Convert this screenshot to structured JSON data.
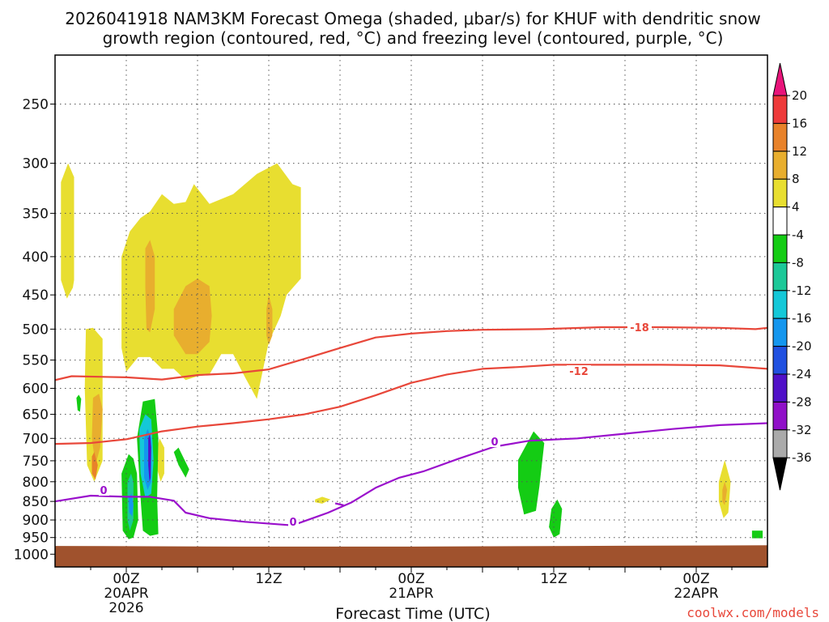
{
  "chart_data": {
    "type": "heatmap",
    "title_line1": "2026041918 NAM3KM Forecast Omega (shaded, μbar/s) for KHUF with dendritic snow",
    "title_line2": "growth region (contoured, red, °C) and freezing level (contoured, purple, °C)",
    "xlabel": "Forecast Time (UTC)",
    "credit": "coolwx.com/models",
    "x_range_hours": [
      -6,
      54
    ],
    "y_range_hpa": [
      215,
      1040
    ],
    "y_scale": "log-pressure",
    "grid": true,
    "y_ticks": [
      "250",
      "300",
      "350",
      "400",
      "450",
      "500",
      "550",
      "600",
      "650",
      "700",
      "750",
      "800",
      "850",
      "900",
      "950",
      "1000"
    ],
    "x_ticks": [
      {
        "h": 0,
        "lines": [
          "00Z",
          "20APR",
          "2026"
        ]
      },
      {
        "h": 12,
        "lines": [
          "12Z"
        ]
      },
      {
        "h": 24,
        "lines": [
          "00Z",
          "21APR"
        ]
      },
      {
        "h": 36,
        "lines": [
          "12Z"
        ]
      },
      {
        "h": 48,
        "lines": [
          "00Z",
          "22APR"
        ]
      }
    ],
    "colorbar": {
      "levels": [
        "20",
        "16",
        "12",
        "8",
        "4",
        "-4",
        "-8",
        "-12",
        "-16",
        "-20",
        "-24",
        "-28",
        "-32",
        "-36"
      ],
      "colors": [
        "#e8147a",
        "#ee3a3a",
        "#e8822a",
        "#e8ae2e",
        "#e8de30",
        "#ffffff",
        "#14cc14",
        "#1cc898",
        "#14c8d8",
        "#1496ee",
        "#2050e0",
        "#5010c8",
        "#9010c8",
        "#aaaaaa",
        "#000000"
      ]
    },
    "contour_labels": {
      "dgz_top": "-18",
      "dgz_bottom": "-12",
      "freezing": "0"
    },
    "contours": [
      {
        "id": "dgz-top",
        "color": "#e8473a",
        "points": [
          [
            -6,
            585
          ],
          [
            -4.6,
            578
          ],
          [
            0,
            580
          ],
          [
            3,
            584
          ],
          [
            6,
            576
          ],
          [
            9,
            573
          ],
          [
            12,
            566
          ],
          [
            15,
            548
          ],
          [
            18,
            530
          ],
          [
            21,
            513
          ],
          [
            24,
            507
          ],
          [
            27,
            503
          ],
          [
            30,
            501
          ],
          [
            35,
            500
          ],
          [
            40,
            497
          ],
          [
            45,
            497
          ],
          [
            50,
            498
          ],
          [
            53,
            500
          ],
          [
            54,
            498
          ]
        ]
      },
      {
        "id": "dgz-bottom",
        "color": "#e8473a",
        "points": [
          [
            -6,
            712
          ],
          [
            -3,
            710
          ],
          [
            0,
            702
          ],
          [
            3,
            685
          ],
          [
            6,
            675
          ],
          [
            9,
            668
          ],
          [
            12,
            660
          ],
          [
            15,
            650
          ],
          [
            18,
            635
          ],
          [
            21,
            613
          ],
          [
            24,
            590
          ],
          [
            27,
            575
          ],
          [
            30,
            565
          ],
          [
            33,
            562
          ],
          [
            36,
            558
          ],
          [
            40,
            558
          ],
          [
            45,
            558
          ],
          [
            50,
            559
          ],
          [
            54,
            565
          ]
        ]
      },
      {
        "id": "freezing",
        "color": "#9a10cc",
        "points": [
          [
            -6,
            850
          ],
          [
            -3,
            835
          ],
          [
            0,
            838
          ],
          [
            2,
            838
          ],
          [
            3,
            843
          ],
          [
            4,
            848
          ],
          [
            5,
            880
          ],
          [
            7,
            895
          ],
          [
            10,
            905
          ],
          [
            14,
            915
          ],
          [
            17,
            880
          ],
          [
            19,
            852
          ],
          [
            21,
            815
          ],
          [
            23,
            790
          ],
          [
            25,
            775
          ],
          [
            28,
            745
          ],
          [
            31,
            718
          ],
          [
            34,
            705
          ],
          [
            38,
            700
          ],
          [
            42,
            690
          ],
          [
            46,
            680
          ],
          [
            50,
            672
          ],
          [
            54,
            668
          ]
        ]
      }
    ],
    "regions": [
      {
        "level": 4,
        "points": [
          [
            -5.5,
            318
          ],
          [
            -4.9,
            300
          ],
          [
            -4.4,
            313
          ],
          [
            -4.4,
            430
          ],
          [
            -4.5,
            440
          ],
          [
            -5,
            455
          ],
          [
            -5.5,
            430
          ]
        ]
      },
      {
        "level": 4,
        "points": [
          [
            -3.4,
            500
          ],
          [
            -2.8,
            498
          ],
          [
            -2,
            515
          ],
          [
            -2,
            750
          ],
          [
            -2.7,
            800
          ],
          [
            -3.3,
            760
          ],
          [
            -3.5,
            600
          ]
        ]
      },
      {
        "level": 4,
        "points": [
          [
            -0.4,
            400
          ],
          [
            0.3,
            370
          ],
          [
            1.2,
            355
          ],
          [
            2,
            348
          ],
          [
            3,
            330
          ],
          [
            4,
            340
          ],
          [
            5,
            338
          ],
          [
            5.7,
            320
          ],
          [
            7,
            340
          ],
          [
            9,
            330
          ],
          [
            11,
            310
          ],
          [
            12.7,
            300
          ],
          [
            14,
            320
          ],
          [
            14.7,
            323
          ],
          [
            14.7,
            428
          ],
          [
            13.5,
            450
          ],
          [
            13,
            480
          ],
          [
            12,
            520
          ],
          [
            11,
            620
          ],
          [
            10,
            580
          ],
          [
            9,
            540
          ],
          [
            8,
            540
          ],
          [
            7,
            575
          ],
          [
            6,
            578
          ],
          [
            5,
            585
          ],
          [
            4,
            565
          ],
          [
            3,
            565
          ],
          [
            2,
            545
          ],
          [
            1,
            545
          ],
          [
            0,
            570
          ],
          [
            -0.4,
            530
          ]
        ]
      },
      {
        "level": 8,
        "points": [
          [
            1.6,
            390
          ],
          [
            2,
            380
          ],
          [
            2.4,
            400
          ],
          [
            2.4,
            470
          ],
          [
            2,
            505
          ],
          [
            1.7,
            500
          ],
          [
            1.6,
            440
          ]
        ]
      },
      {
        "level": 8,
        "points": [
          [
            4,
            470
          ],
          [
            5,
            438
          ],
          [
            6,
            428
          ],
          [
            7,
            438
          ],
          [
            7.2,
            480
          ],
          [
            7,
            520
          ],
          [
            6,
            540
          ],
          [
            5,
            540
          ],
          [
            4,
            510
          ]
        ]
      },
      {
        "level": 8,
        "points": [
          [
            11.8,
            470
          ],
          [
            12,
            450
          ],
          [
            12.3,
            470
          ],
          [
            12.3,
            510
          ],
          [
            12,
            525
          ],
          [
            11.8,
            510
          ]
        ]
      },
      {
        "level": 8,
        "points": [
          [
            -2.8,
            618
          ],
          [
            -2.3,
            610
          ],
          [
            -2,
            640
          ],
          [
            -2.2,
            720
          ],
          [
            -2.6,
            760
          ],
          [
            -2.9,
            700
          ]
        ]
      },
      {
        "level": 12,
        "points": [
          [
            -2.9,
            740
          ],
          [
            -2.7,
            730
          ],
          [
            -2.4,
            760
          ],
          [
            -2.6,
            795
          ],
          [
            -2.9,
            780
          ]
        ]
      },
      {
        "level": 4,
        "points": [
          [
            2.6,
            720
          ],
          [
            2.8,
            700
          ],
          [
            3.2,
            720
          ],
          [
            3.2,
            780
          ],
          [
            2.9,
            800
          ],
          [
            2.6,
            770
          ]
        ]
      },
      {
        "level": 4,
        "points": [
          [
            15.9,
            845
          ],
          [
            16.5,
            838
          ],
          [
            17.2,
            845
          ],
          [
            16.5,
            856
          ],
          [
            15.9,
            852
          ]
        ]
      },
      {
        "level": 4,
        "points": [
          [
            49.9,
            800
          ],
          [
            50.4,
            748
          ],
          [
            50.9,
            800
          ],
          [
            50.7,
            880
          ],
          [
            50.3,
            895
          ],
          [
            49.9,
            850
          ]
        ]
      },
      {
        "level": 8,
        "points": [
          [
            50.2,
            820
          ],
          [
            50.4,
            800
          ],
          [
            50.6,
            820
          ],
          [
            50.4,
            860
          ],
          [
            50.2,
            850
          ]
        ]
      },
      {
        "level": -4,
        "points": [
          [
            -4.2,
            618
          ],
          [
            -4,
            612
          ],
          [
            -3.8,
            620
          ],
          [
            -3.9,
            645
          ],
          [
            -4.1,
            642
          ]
        ]
      },
      {
        "level": -4,
        "points": [
          [
            -0.4,
            780
          ],
          [
            0.2,
            735
          ],
          [
            0.6,
            745
          ],
          [
            0.9,
            780
          ],
          [
            1,
            900
          ],
          [
            0.6,
            950
          ],
          [
            0.2,
            955
          ],
          [
            -0.3,
            930
          ]
        ]
      },
      {
        "level": -4,
        "points": [
          [
            0.9,
            700
          ],
          [
            1.4,
            625
          ],
          [
            2.4,
            620
          ],
          [
            2.7,
            700
          ],
          [
            2.6,
            840
          ],
          [
            2.7,
            940
          ],
          [
            2,
            945
          ],
          [
            1.4,
            930
          ],
          [
            1.2,
            840
          ]
        ]
      },
      {
        "level": -4,
        "points": [
          [
            4,
            730
          ],
          [
            4.4,
            720
          ],
          [
            5.3,
            770
          ],
          [
            5,
            790
          ],
          [
            4.4,
            760
          ]
        ]
      },
      {
        "level": -4,
        "points": [
          [
            33,
            748
          ],
          [
            34.3,
            685
          ],
          [
            35.2,
            710
          ],
          [
            34.8,
            810
          ],
          [
            34.5,
            875
          ],
          [
            33.5,
            885
          ],
          [
            33,
            815
          ]
        ]
      },
      {
        "level": -4,
        "points": [
          [
            35.8,
            870
          ],
          [
            36.3,
            845
          ],
          [
            36.7,
            870
          ],
          [
            36.5,
            940
          ],
          [
            36,
            950
          ],
          [
            35.6,
            920
          ]
        ]
      },
      {
        "level": -4,
        "points": [
          [
            52.7,
            930
          ],
          [
            53.6,
            930
          ],
          [
            53.6,
            952
          ],
          [
            52.7,
            952
          ]
        ]
      },
      {
        "level": -8,
        "points": [
          [
            0.1,
            800
          ],
          [
            0.4,
            780
          ],
          [
            0.6,
            800
          ],
          [
            0.6,
            900
          ],
          [
            0.3,
            930
          ],
          [
            0.1,
            900
          ]
        ]
      },
      {
        "level": -12,
        "points": [
          [
            1.1,
            680
          ],
          [
            1.6,
            650
          ],
          [
            2.1,
            660
          ],
          [
            2.3,
            750
          ],
          [
            2.1,
            830
          ],
          [
            1.6,
            840
          ],
          [
            1.2,
            780
          ]
        ]
      },
      {
        "level": -16,
        "points": [
          [
            1.5,
            700
          ],
          [
            1.8,
            680
          ],
          [
            2.1,
            700
          ],
          [
            2.1,
            800
          ],
          [
            1.8,
            820
          ],
          [
            1.5,
            790
          ]
        ]
      },
      {
        "level": -24,
        "points": [
          [
            1.85,
            700
          ],
          [
            2,
            690
          ],
          [
            2.1,
            720
          ],
          [
            2.05,
            790
          ],
          [
            1.95,
            800
          ],
          [
            1.85,
            760
          ]
        ]
      },
      {
        "level": -16,
        "points": [
          [
            0.2,
            840
          ],
          [
            0.45,
            830
          ],
          [
            0.6,
            860
          ],
          [
            0.5,
            890
          ],
          [
            0.25,
            880
          ]
        ]
      }
    ]
  }
}
